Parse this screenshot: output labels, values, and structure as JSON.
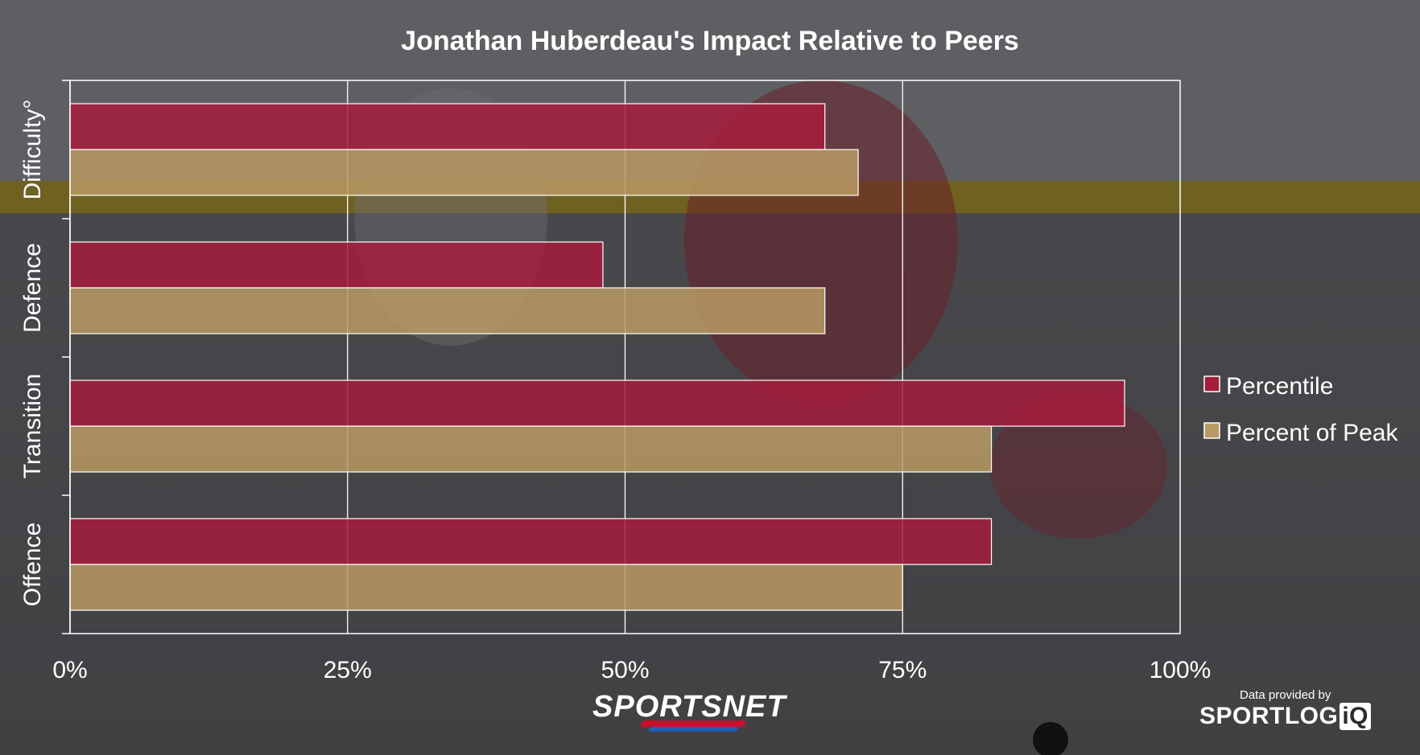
{
  "chart_data": {
    "type": "bar",
    "orientation": "horizontal",
    "title": "Jonathan Huberdeau's Impact Relative to Peers",
    "categories": [
      "Difficulty°",
      "Defence",
      "Transition",
      "Offence"
    ],
    "series": [
      {
        "name": "Percentile",
        "color": "#a61c3c",
        "values": [
          68,
          48,
          95,
          83
        ]
      },
      {
        "name": "Percent of Peak",
        "color": "#b89a63",
        "values": [
          71,
          68,
          83,
          75
        ]
      }
    ],
    "xlim": [
      0,
      100
    ],
    "xticks": [
      "0%",
      "25%",
      "50%",
      "75%",
      "100%"
    ],
    "xtick_values": [
      0,
      25,
      50,
      75,
      100
    ],
    "grid": "vertical",
    "legend": "right"
  },
  "branding": {
    "publisher_logo": "SPORTSNET",
    "provider_caption": "Data provided by",
    "provider_logo_main": "SPORTLOG",
    "provider_logo_suffix": "iQ"
  }
}
